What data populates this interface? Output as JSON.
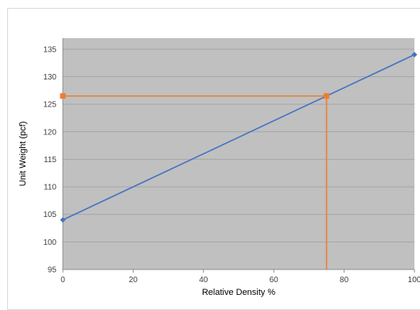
{
  "chart_data": {
    "type": "line",
    "title": "",
    "xlabel": "Relative Density %",
    "ylabel": "Unit Weight (pcf)",
    "xlim": [
      0,
      100
    ],
    "ylim": [
      95,
      137
    ],
    "x_ticks": [
      0,
      20,
      40,
      60,
      80,
      100
    ],
    "y_ticks": [
      95,
      100,
      105,
      110,
      115,
      120,
      125,
      130,
      135
    ],
    "grid": "horizontal",
    "legend": "none",
    "plot_background": "#c0c0c0",
    "series": [
      {
        "color": "#4472c4",
        "marker": "diamond",
        "points": [
          [
            0,
            104
          ],
          [
            100,
            134
          ]
        ]
      },
      {
        "color": "#ed7d31",
        "marker": "square",
        "points": [
          [
            0,
            126.5
          ],
          [
            75,
            126.5
          ],
          [
            75,
            95
          ]
        ]
      }
    ]
  }
}
